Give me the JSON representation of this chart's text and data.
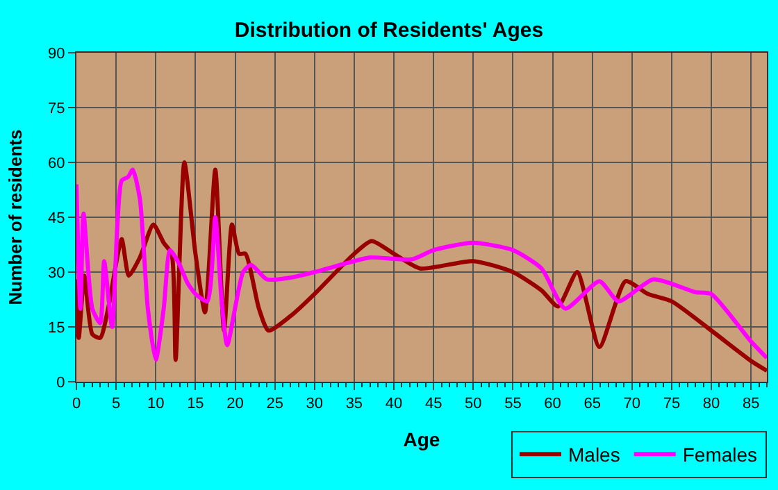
{
  "chart_data": {
    "type": "line",
    "title": "Distribution of Residents' Ages",
    "xlabel": "Age",
    "ylabel": "Number of residents",
    "xlim": [
      0,
      87
    ],
    "xticks": [
      0,
      5,
      10,
      15,
      20,
      25,
      30,
      35,
      40,
      45,
      50,
      55,
      60,
      65,
      70,
      75,
      80,
      85
    ],
    "ylim": [
      0,
      90
    ],
    "yticks": [
      0,
      15,
      30,
      45,
      60,
      75,
      90
    ],
    "grid": true,
    "legend": "bottom right",
    "marker": "none",
    "line_style": "solid",
    "series": [
      {
        "name": "Males",
        "color": "#990000",
        "x": [
          0,
          0.3,
          1,
          2,
          3,
          4,
          5.7,
          6.6,
          8,
          9.7,
          11,
          12,
          12.5,
          13.6,
          15,
          16.2,
          17.5,
          18.6,
          19.6,
          20.5,
          21.3,
          23,
          24.2,
          27,
          30,
          35,
          37.2,
          40,
          43.3,
          50,
          55,
          58.6,
          60.7,
          63.1,
          65.9,
          69.2,
          72,
          75,
          80,
          85,
          87
        ],
        "values": [
          28,
          12,
          29,
          13,
          12,
          20,
          39,
          29,
          34,
          43,
          38,
          35,
          6,
          60,
          35,
          19,
          58,
          14,
          43,
          35,
          35,
          20,
          14,
          18,
          24,
          35,
          38.5,
          35,
          31,
          33,
          30,
          25,
          20.6,
          30,
          9.5,
          27.5,
          24,
          22,
          14,
          5.7,
          3
        ]
      },
      {
        "name": "Females",
        "color": "#ff00ff",
        "x": [
          0,
          0.5,
          0.9,
          2,
          3,
          3.5,
          4.5,
          5.7,
          6.5,
          7.1,
          8,
          9,
          10,
          11,
          11.8,
          13,
          14,
          15,
          16.5,
          17.5,
          18.3,
          19,
          21,
          22,
          24,
          27,
          30,
          35,
          37,
          42.3,
          45,
          50,
          55,
          58.6,
          61.6,
          65.9,
          68.3,
          72.7,
          78,
          80,
          85,
          87
        ],
        "values": [
          54,
          20,
          46,
          20,
          16,
          33,
          15,
          55,
          56,
          58,
          50,
          20,
          6,
          20,
          36,
          32,
          27,
          24,
          22,
          45,
          22,
          10,
          30,
          32,
          28,
          28.5,
          30,
          33,
          34,
          33.5,
          36,
          38,
          36,
          31,
          20,
          27.5,
          22,
          28,
          24.5,
          24,
          11,
          6.5
        ]
      }
    ]
  }
}
